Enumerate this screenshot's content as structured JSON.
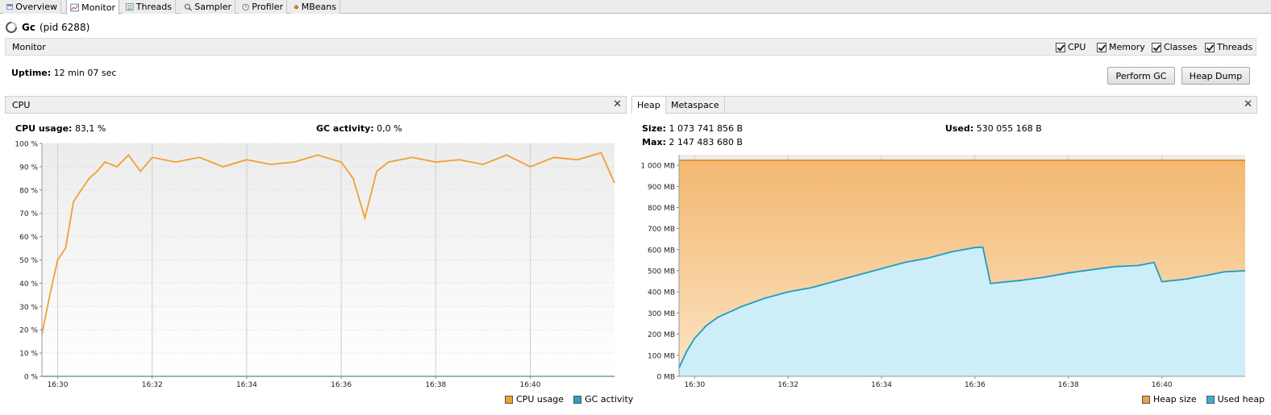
{
  "tabs": [
    {
      "label": "Overview",
      "icon": "overview-icon"
    },
    {
      "label": "Monitor",
      "icon": "monitor-icon"
    },
    {
      "label": "Threads",
      "icon": "threads-icon"
    },
    {
      "label": "Sampler",
      "icon": "sampler-icon"
    },
    {
      "label": "Profiler",
      "icon": "profiler-icon"
    },
    {
      "label": "MBeans",
      "icon": "mbeans-icon"
    }
  ],
  "app": {
    "name": "Gc",
    "pid": "(pid 6288)"
  },
  "monitor": {
    "label": "Monitor",
    "checkboxes": [
      {
        "label": "CPU",
        "checked": true
      },
      {
        "label": "Memory",
        "checked": true
      },
      {
        "label": "Classes",
        "checked": true
      },
      {
        "label": "Threads",
        "checked": true
      }
    ],
    "uptime_label": "Uptime:",
    "uptime_value": "12 min 07 sec",
    "perform_gc": "Perform GC",
    "heap_dump": "Heap Dump"
  },
  "cpu": {
    "panel_title": "CPU",
    "usage_label": "CPU usage:",
    "usage_value": "83,1 %",
    "gc_label": "GC activity:",
    "gc_value": "0,0 %",
    "legend_cpu": "CPU usage",
    "legend_gc": "GC activity"
  },
  "heap": {
    "tab_heap": "Heap",
    "tab_metaspace": "Metaspace",
    "size_label": "Size:",
    "size_value": "1 073 741 856 B",
    "max_label": "Max:",
    "max_value": "2 147 483 680 B",
    "used_label": "Used:",
    "used_value": "530 055 168 B",
    "legend_size": "Heap size",
    "legend_used": "Used heap"
  },
  "colors": {
    "cpu": "#f0a030",
    "gc": "#2aa0c8",
    "heap_size": "#f0a040",
    "used_heap": "#3ab0d0"
  },
  "chart_data": [
    {
      "type": "line",
      "title": "CPU",
      "y_unit": "%",
      "ylim": [
        0,
        100
      ],
      "y_ticks": [
        "0 %",
        "10 %",
        "20 %",
        "30 %",
        "40 %",
        "50 %",
        "60 %",
        "70 %",
        "80 %",
        "90 %",
        "100 %"
      ],
      "x_ticks": [
        "16:30",
        "16:32",
        "16:34",
        "16:36",
        "16:38",
        "16:40"
      ],
      "xlim": [
        "16:29:40",
        "16:41:47"
      ],
      "grid": true,
      "legend": "bottom-right",
      "series": [
        {
          "name": "CPU usage",
          "x": [
            "16:29:40",
            "16:29:50",
            "16:30:00",
            "16:30:10",
            "16:30:20",
            "16:30:30",
            "16:30:40",
            "16:30:50",
            "16:31:00",
            "16:31:15",
            "16:31:30",
            "16:31:45",
            "16:32:00",
            "16:32:30",
            "16:33:00",
            "16:33:30",
            "16:34:00",
            "16:34:30",
            "16:35:00",
            "16:35:30",
            "16:36:00",
            "16:36:15",
            "16:36:30",
            "16:36:45",
            "16:37:00",
            "16:37:30",
            "16:38:00",
            "16:38:30",
            "16:39:00",
            "16:39:30",
            "16:40:00",
            "16:40:30",
            "16:41:00",
            "16:41:30",
            "16:41:47"
          ],
          "values": [
            18,
            35,
            50,
            55,
            75,
            80,
            85,
            88,
            92,
            90,
            95,
            88,
            94,
            92,
            94,
            90,
            93,
            91,
            92,
            95,
            92,
            85,
            68,
            88,
            92,
            94,
            92,
            93,
            91,
            95,
            90,
            94,
            93,
            96,
            83
          ]
        },
        {
          "name": "GC activity",
          "x": [
            "16:29:40",
            "16:41:47"
          ],
          "values": [
            0,
            0
          ]
        }
      ]
    },
    {
      "type": "area",
      "title": "Heap",
      "y_unit": "MB",
      "ylim": [
        0,
        1050
      ],
      "y_ticks": [
        "0 MB",
        "100 MB",
        "200 MB",
        "300 MB",
        "400 MB",
        "500 MB",
        "600 MB",
        "700 MB",
        "800 MB",
        "900 MB",
        "1 000 MB"
      ],
      "x_ticks": [
        "16:30",
        "16:32",
        "16:34",
        "16:36",
        "16:38",
        "16:40"
      ],
      "xlim": [
        "16:29:40",
        "16:41:47"
      ],
      "grid": true,
      "legend": "bottom-right",
      "series": [
        {
          "name": "Heap size",
          "x": [
            "16:29:40",
            "16:41:47"
          ],
          "values": [
            1024,
            1024
          ]
        },
        {
          "name": "Used heap",
          "x": [
            "16:29:40",
            "16:29:50",
            "16:30:00",
            "16:30:15",
            "16:30:30",
            "16:31:00",
            "16:31:30",
            "16:32:00",
            "16:32:30",
            "16:33:00",
            "16:33:30",
            "16:34:00",
            "16:34:30",
            "16:35:00",
            "16:35:30",
            "16:36:00",
            "16:36:10",
            "16:36:20",
            "16:37:00",
            "16:37:30",
            "16:38:00",
            "16:38:30",
            "16:39:00",
            "16:39:30",
            "16:39:50",
            "16:40:00",
            "16:40:30",
            "16:41:00",
            "16:41:20",
            "16:41:47"
          ],
          "values": [
            40,
            120,
            180,
            240,
            280,
            330,
            370,
            400,
            420,
            450,
            480,
            510,
            540,
            560,
            590,
            610,
            612,
            440,
            455,
            470,
            490,
            505,
            520,
            525,
            540,
            448,
            460,
            480,
            495,
            500
          ]
        }
      ]
    }
  ]
}
